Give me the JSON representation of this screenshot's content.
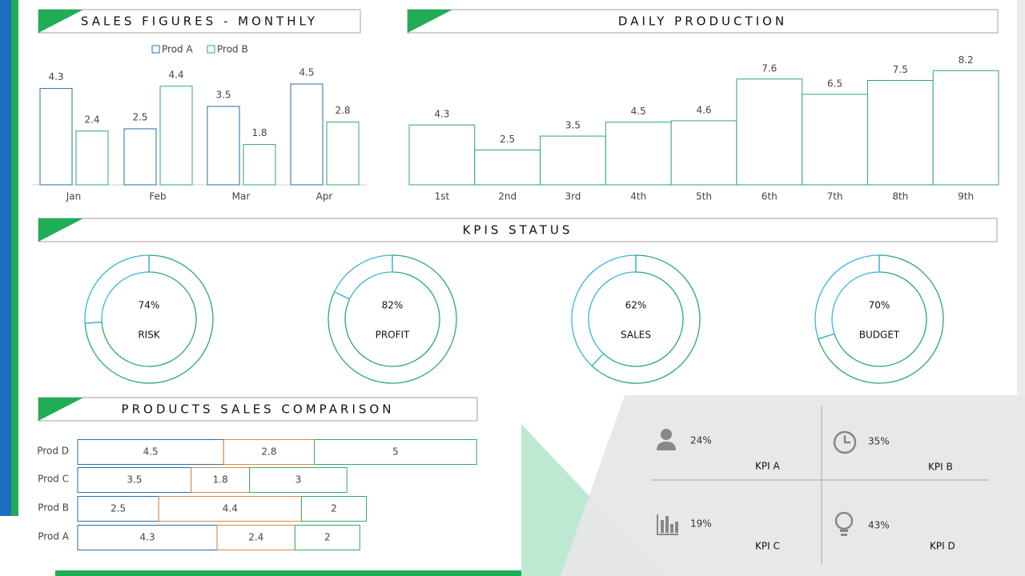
{
  "chart_data": [
    {
      "type": "bar",
      "title": "SALES FIGURES - MONTHLY",
      "categories": [
        "Jan",
        "Feb",
        "Mar",
        "Apr"
      ],
      "series": [
        {
          "name": "Prod A",
          "color": "#2a6ea6",
          "values": [
            4.3,
            2.5,
            3.5,
            4.5
          ]
        },
        {
          "name": "Prod B",
          "color": "#2ea86a",
          "values": [
            2.4,
            4.4,
            1.8,
            2.8
          ]
        }
      ],
      "legend": "top"
    },
    {
      "type": "bar",
      "title": "DAILY PRODUCTION",
      "categories": [
        "1st",
        "2nd",
        "3rd",
        "4th",
        "5th",
        "6th",
        "7th",
        "8th",
        "9th"
      ],
      "values": [
        4.3,
        2.5,
        3.5,
        4.5,
        4.6,
        7.6,
        6.5,
        7.5,
        8.2
      ],
      "color": "#2ea86a"
    },
    {
      "type": "donut",
      "title": "KPIS STATUS",
      "categories": [
        "RISK",
        "PROFIT",
        "SALES",
        "BUDGET"
      ],
      "values": [
        74,
        82,
        62,
        70
      ],
      "value_labels": [
        "74%",
        "82%",
        "62%",
        "70%"
      ],
      "color": "#2ea86a",
      "remainder_color": "#3fb3d6"
    },
    {
      "type": "bar",
      "orientation": "horizontal",
      "stacked": true,
      "title": "PRODUCTS SALES COMPARISON",
      "categories": [
        "Prod D",
        "Prod C",
        "Prod B",
        "Prod A"
      ],
      "series": [
        {
          "color": "#2a6ea6",
          "values": [
            4.5,
            3.5,
            2.5,
            4.3
          ]
        },
        {
          "color": "#e0883a",
          "values": [
            2.8,
            1.8,
            4.4,
            2.4
          ]
        },
        {
          "color": "#2ea86a",
          "values": [
            5,
            3,
            2,
            2
          ]
        }
      ]
    }
  ],
  "kpi_panel": {
    "items": [
      {
        "value": "24%",
        "label": "KPI A"
      },
      {
        "value": "35%",
        "label": "KPI B"
      },
      {
        "value": "19%",
        "label": "KPI C"
      },
      {
        "value": "43%",
        "label": "KPI D"
      }
    ]
  }
}
